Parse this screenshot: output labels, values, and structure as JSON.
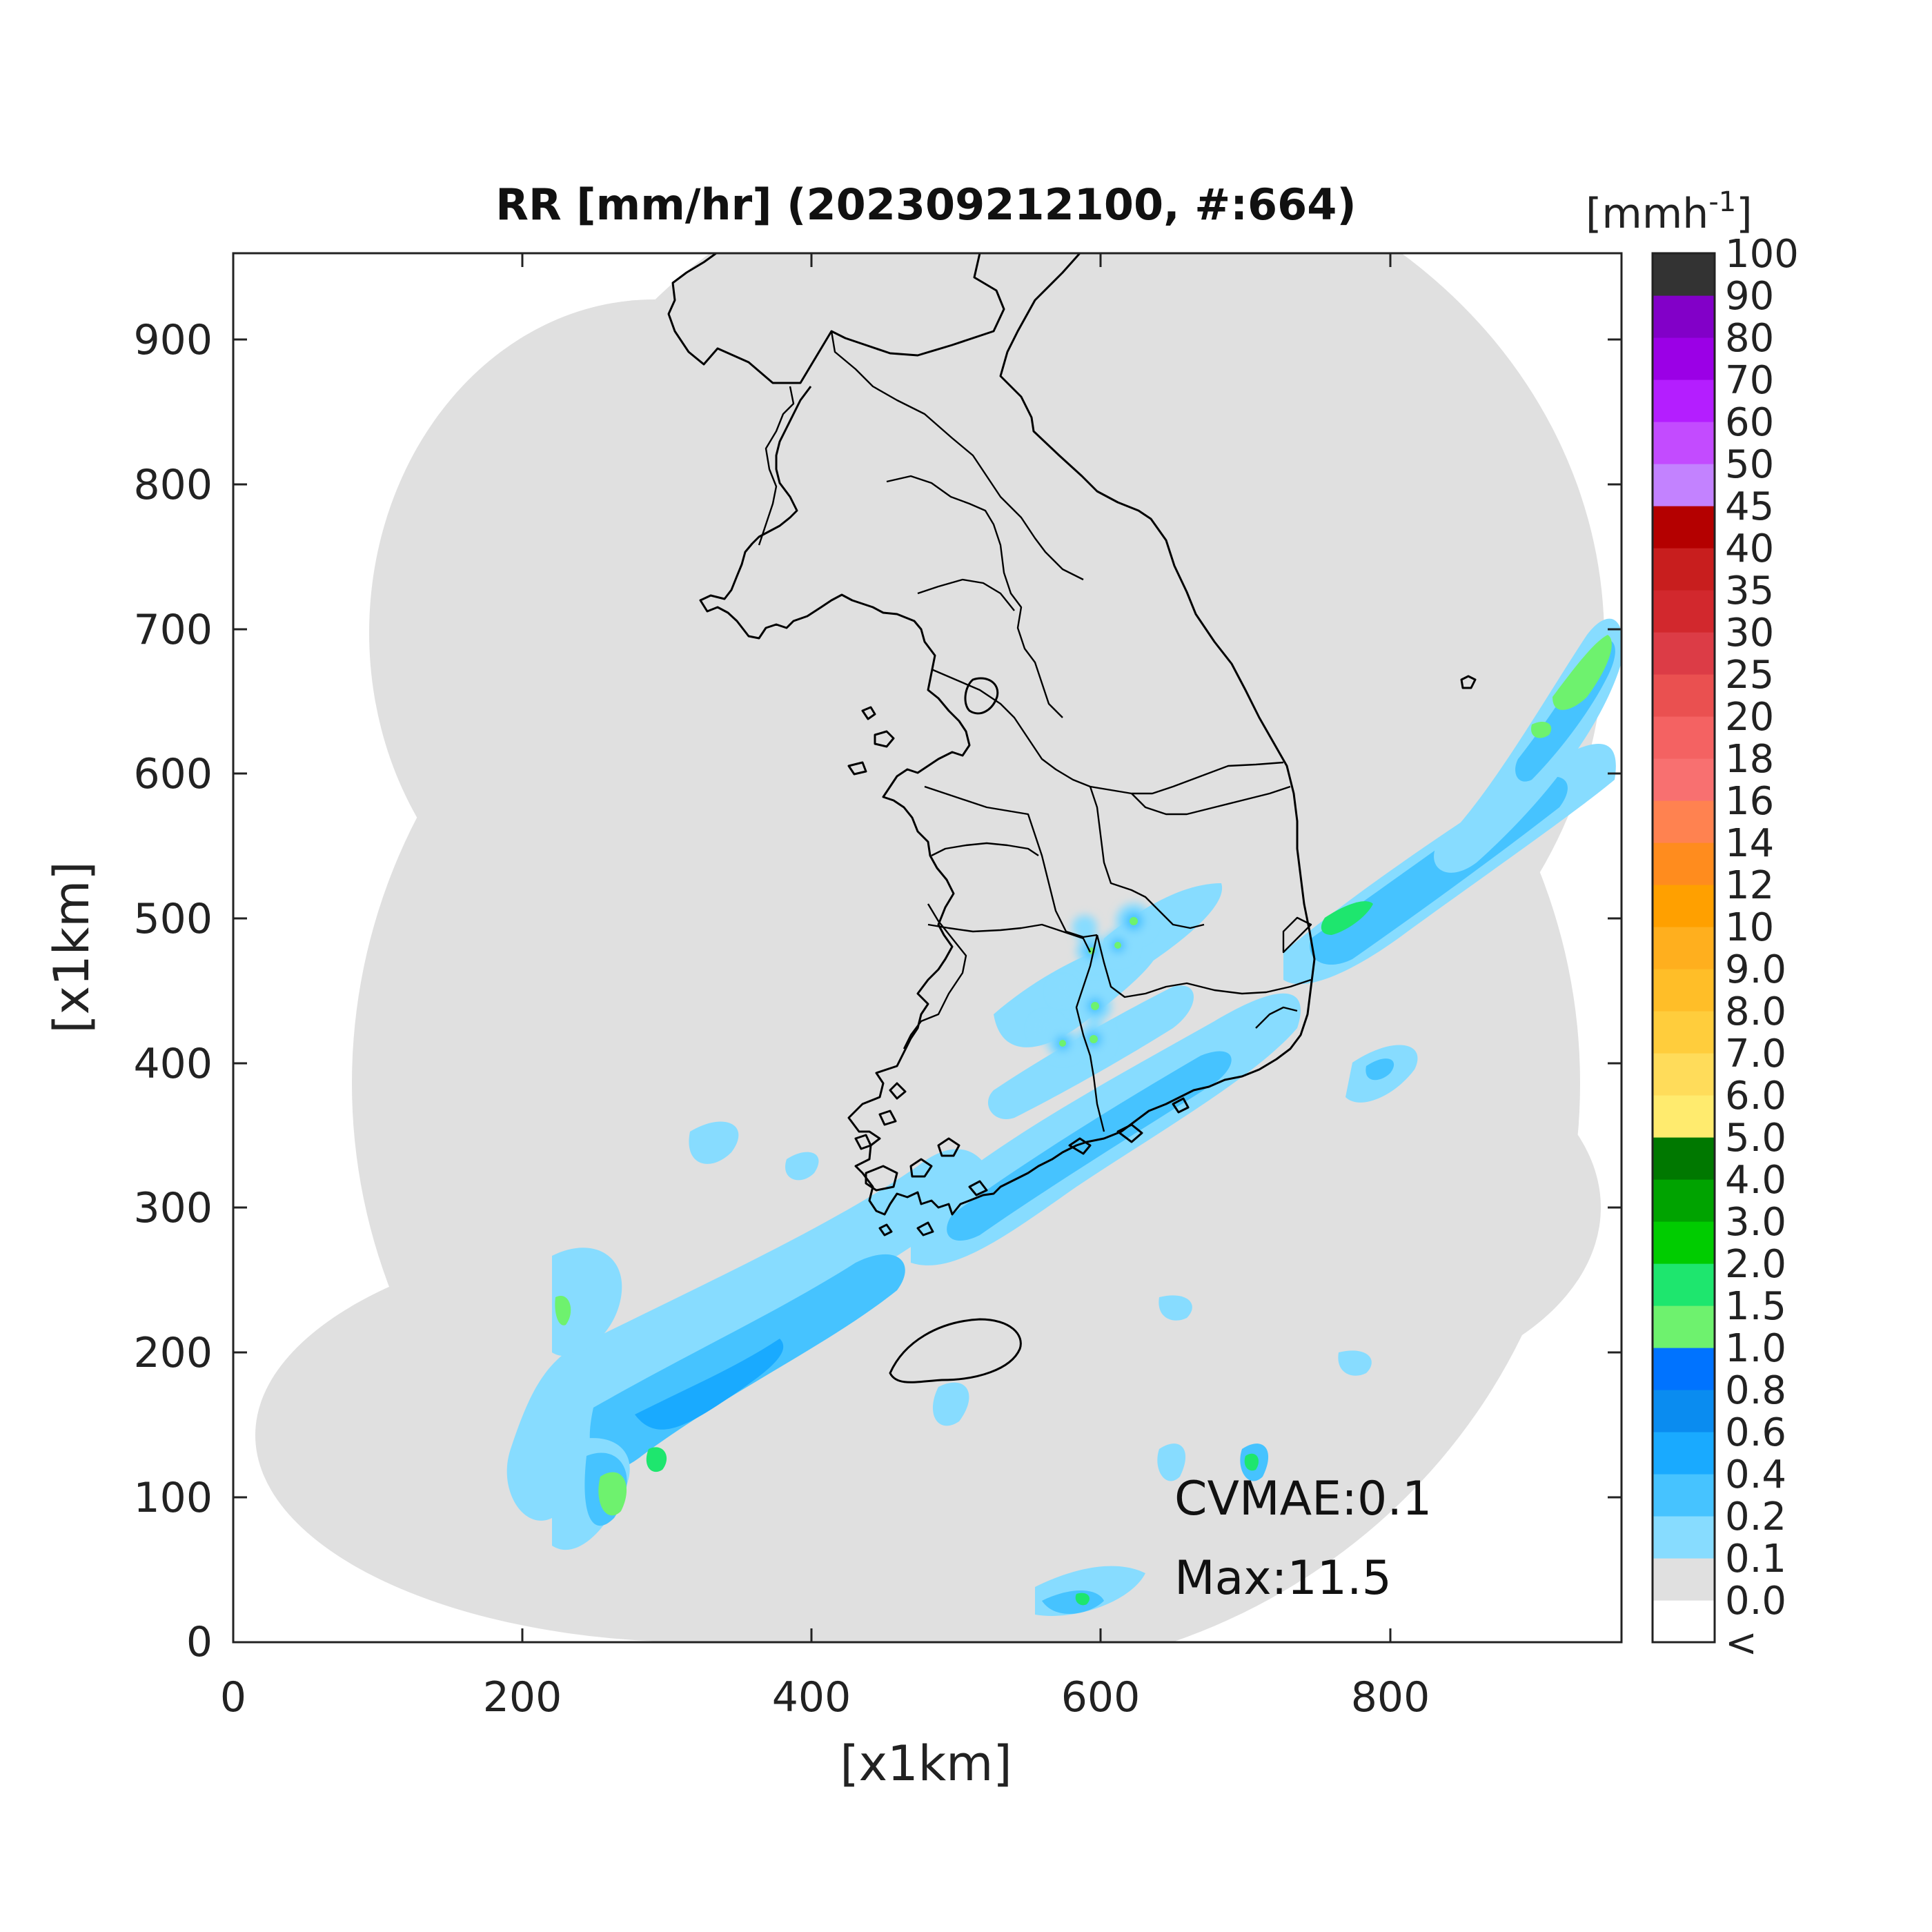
{
  "title": "RR [mm/hr] (202309212100, #:664)",
  "xlabel": "[x1km]",
  "ylabel": "[x1km]",
  "colorbar_unit": "[mmh",
  "colorbar_unit_sup": "-1",
  "colorbar_unit_close": "]",
  "annotations": {
    "cvmae": "CVMAE:0.1",
    "max": "Max:11.5"
  },
  "chart_data": {
    "type": "heatmap",
    "title": "RR [mm/hr] (202309212100, #:664)",
    "xlabel": "[x1km]",
    "ylabel": "[x1km]",
    "xlim": [
      0,
      960
    ],
    "ylim": [
      0,
      960
    ],
    "xticks": [
      "0",
      "200",
      "400",
      "600",
      "800"
    ],
    "yticks": [
      "0",
      "100",
      "200",
      "300",
      "400",
      "500",
      "600",
      "700",
      "800",
      "900"
    ],
    "grid": false,
    "colorbar": {
      "labels": [
        "<",
        "0.0",
        "0.1",
        "0.2",
        "0.4",
        "0.6",
        "0.8",
        "1.0",
        "1.5",
        "2.0",
        "3.0",
        "4.0",
        "5.0",
        "6.0",
        "7.0",
        "8.0",
        "9.0",
        "10",
        "12",
        "14",
        "16",
        "18",
        "20",
        "25",
        "30",
        "35",
        "40",
        "45",
        "50",
        "60",
        "70",
        "80",
        "90",
        "100"
      ],
      "colors": [
        "#ffffff",
        "#e0e0e0",
        "#87dcff",
        "#46c3ff",
        "#19aaff",
        "#0a8cf0",
        "#0073ff",
        "#6ef26e",
        "#1ee66e",
        "#00cc00",
        "#00a300",
        "#007800",
        "#ffeb6e",
        "#ffdc5a",
        "#ffcd3c",
        "#ffbe28",
        "#ffaf1e",
        "#ffa000",
        "#ff8c1e",
        "#ff8250",
        "#f87070",
        "#f46262",
        "#ea5050",
        "#dc3c46",
        "#d2282d",
        "#c81e1e",
        "#b40000",
        "#c382ff",
        "#c34bff",
        "#b41eff",
        "#9b00e6",
        "#8200c8",
        "#333333"
      ]
    },
    "annotations": [
      "CVMAE:0.1",
      "Max:11.5"
    ]
  }
}
